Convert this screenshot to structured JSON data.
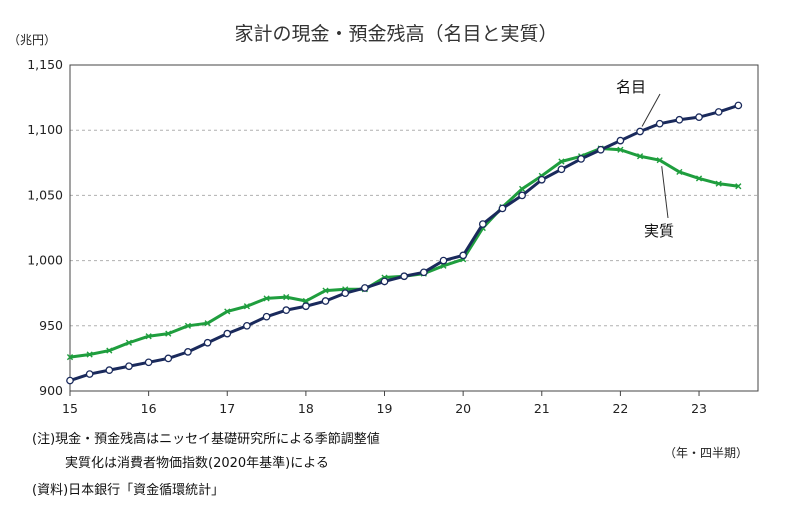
{
  "chart_data": {
    "type": "line",
    "title": "家計の現金・預金残高（名目と実質）",
    "y_unit": "（兆円）",
    "x_unit": "（年・四半期）",
    "ylim": [
      900,
      1150
    ],
    "yticks": [
      "900",
      "950",
      "1,000",
      "1,050",
      "1,100",
      "1,150"
    ],
    "ytick_values": [
      900,
      950,
      1000,
      1050,
      1100,
      1150
    ],
    "xticks": [
      "15",
      "16",
      "17",
      "18",
      "19",
      "20",
      "21",
      "22",
      "23"
    ],
    "x_start_year": 15,
    "points_per_year": 4,
    "grid": "horizontal dashed",
    "series": [
      {
        "name": "名目",
        "color": "#1a2a5c",
        "marker": "circle",
        "values": [
          908,
          913,
          916,
          919,
          922,
          925,
          930,
          937,
          944,
          950,
          957,
          962,
          965,
          969,
          975,
          979,
          984,
          988,
          991,
          1000,
          1004,
          1028,
          1040,
          1050,
          1062,
          1070,
          1078,
          1085,
          1092,
          1099,
          1105,
          1108,
          1110,
          1114,
          1119
        ]
      },
      {
        "name": "実質",
        "color": "#1f9e3e",
        "marker": "x",
        "values": [
          926,
          928,
          931,
          937,
          942,
          944,
          950,
          952,
          961,
          965,
          971,
          972,
          969,
          977,
          978,
          978,
          987,
          988,
          990,
          996,
          1001,
          1025,
          1041,
          1055,
          1065,
          1076,
          1080,
          1086,
          1085,
          1080,
          1077,
          1068,
          1063,
          1059,
          1057
        ]
      }
    ]
  },
  "notes": {
    "line1": "(注)現金・預金残高はニッセイ基礎研究所による季節調整値",
    "line2": "実質化は消費者物価指数(2020年基準)による",
    "source": "(資料)日本銀行「資金循環統計」"
  }
}
